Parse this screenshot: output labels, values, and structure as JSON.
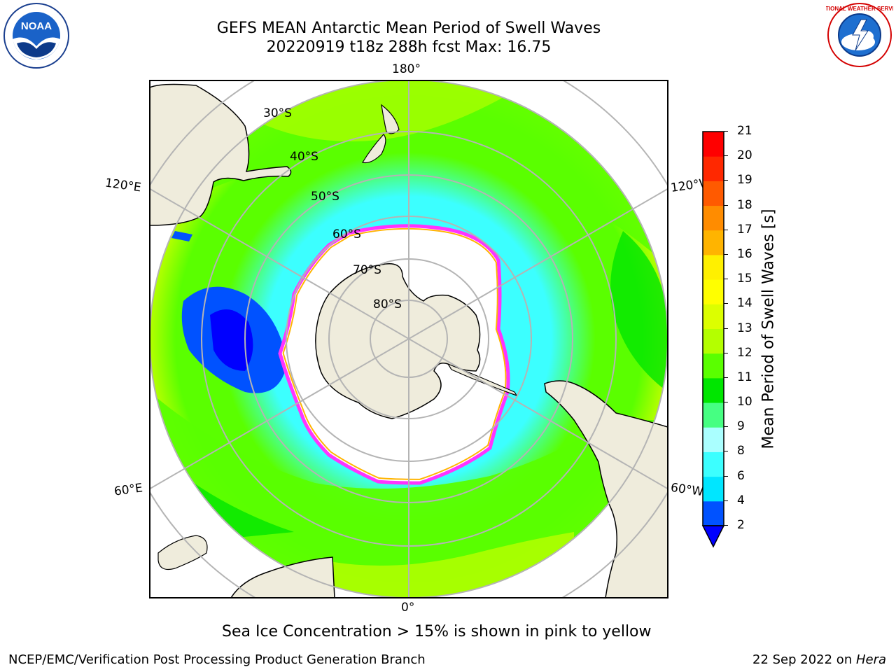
{
  "header": {
    "title_line1": "GEFS MEAN Antarctic Mean Period of Swell Waves",
    "title_line2": "20220919 t18z 288h fcst   Max: 16.75"
  },
  "logos": {
    "left": {
      "icon": "noaa-logo",
      "text": "NOAA",
      "ring_text": "NATIONAL OCEANIC AND ATMOSPHERIC ADMINISTRATION · U.S. DEPARTMENT OF COMMERCE"
    },
    "right": {
      "icon": "nws-logo",
      "ring_text": "NATIONAL WEATHER SERVICE"
    }
  },
  "map": {
    "projection": "south-polar-stereographic",
    "longitude_labels": {
      "top": "180°",
      "bottom": "0°",
      "upper_left": "120°E",
      "upper_right": "120°W",
      "lower_left": "60°E",
      "lower_right": "60°W"
    },
    "latitude_labels": [
      "30°S",
      "40°S",
      "50°S",
      "60°S",
      "70°S",
      "80°S"
    ],
    "colors": {
      "land": "#efecdc",
      "ice": "#ffffff",
      "grid": "#b4b4b4",
      "ice_edge": "#ff33ff",
      "ice_inner": "#ffb400"
    }
  },
  "colorbar": {
    "label": "Mean Period of Swell Waves [s]",
    "ticks": [
      "2",
      "4",
      "6",
      "8",
      "9",
      "10",
      "11",
      "12",
      "13",
      "14",
      "15",
      "16",
      "17",
      "18",
      "19",
      "20",
      "21"
    ],
    "colors": [
      "#0052ff",
      "#00e6ff",
      "#3cffff",
      "#aaffff",
      "#46ff82",
      "#00e600",
      "#5aff00",
      "#b4ff00",
      "#dcff00",
      "#ffff00",
      "#fff000",
      "#ffb400",
      "#ff8c00",
      "#ff5a00",
      "#ff2800",
      "#ff0000"
    ],
    "under_color": "#0000ff"
  },
  "note": "Sea Ice Concentration > 15% is shown in pink to yellow",
  "footer": {
    "left": "NCEP/EMC/Verification Post Processing Product Generation Branch",
    "right_prefix": "22 Sep 2022 on ",
    "right_machine": "Hera"
  }
}
